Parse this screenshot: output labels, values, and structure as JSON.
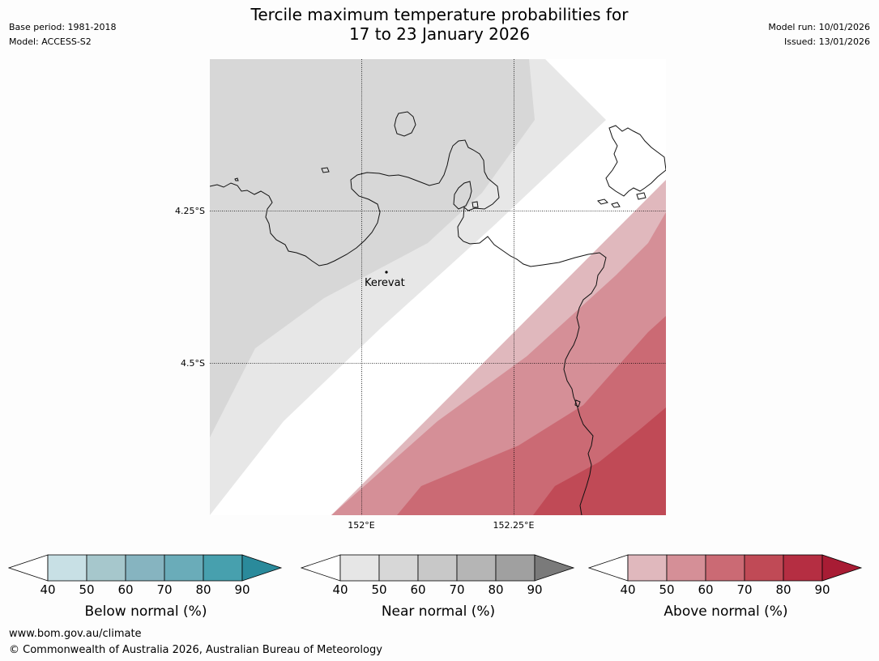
{
  "header": {
    "base_period": "Base period: 1981-2018",
    "model": "Model: ACCESS-S2",
    "title_line1": "Tercile maximum temperature probabilities for",
    "title_line2": "17 to 23 January 2026",
    "model_run": "Model run: 10/01/2026",
    "issued": "Issued: 13/01/2026"
  },
  "map": {
    "lat_labels": [
      "4.25°S",
      "4.5°S"
    ],
    "lon_labels": [
      "152°E",
      "152.25°E"
    ],
    "place_label": "Kerevat",
    "colors": {
      "near_50": "#d7d7d7",
      "near_40": "#e7e7e7",
      "above_40": "#e0b8bd",
      "above_50": "#d58f97",
      "above_60": "#cb6a74",
      "above_70": "#c04a56",
      "coast": "#111111"
    }
  },
  "colorbars": [
    {
      "label": "Below normal (%)",
      "ticks": [
        "40",
        "50",
        "60",
        "70",
        "80",
        "90"
      ],
      "colors": [
        "#c8e0e5",
        "#a6c7cc",
        "#86b4c0",
        "#6aacb9",
        "#47a0ae"
      ],
      "extend_color": "#2a8a9b"
    },
    {
      "label": "Near normal (%)",
      "ticks": [
        "40",
        "50",
        "60",
        "70",
        "80",
        "90"
      ],
      "colors": [
        "#e6e6e6",
        "#d7d7d7",
        "#c8c8c8",
        "#b5b5b5",
        "#a0a0a0"
      ],
      "extend_color": "#7a7a7a"
    },
    {
      "label": "Above normal (%)",
      "ticks": [
        "40",
        "50",
        "60",
        "70",
        "80",
        "90"
      ],
      "colors": [
        "#e0b8bd",
        "#d58f97",
        "#cb6a74",
        "#c04a56",
        "#b52e42"
      ],
      "extend_color": "#a81c34"
    }
  ],
  "footer": {
    "url": "www.bom.gov.au/climate",
    "copyright": "© Commonwealth of Australia 2026, Australian Bureau of Meteorology"
  }
}
